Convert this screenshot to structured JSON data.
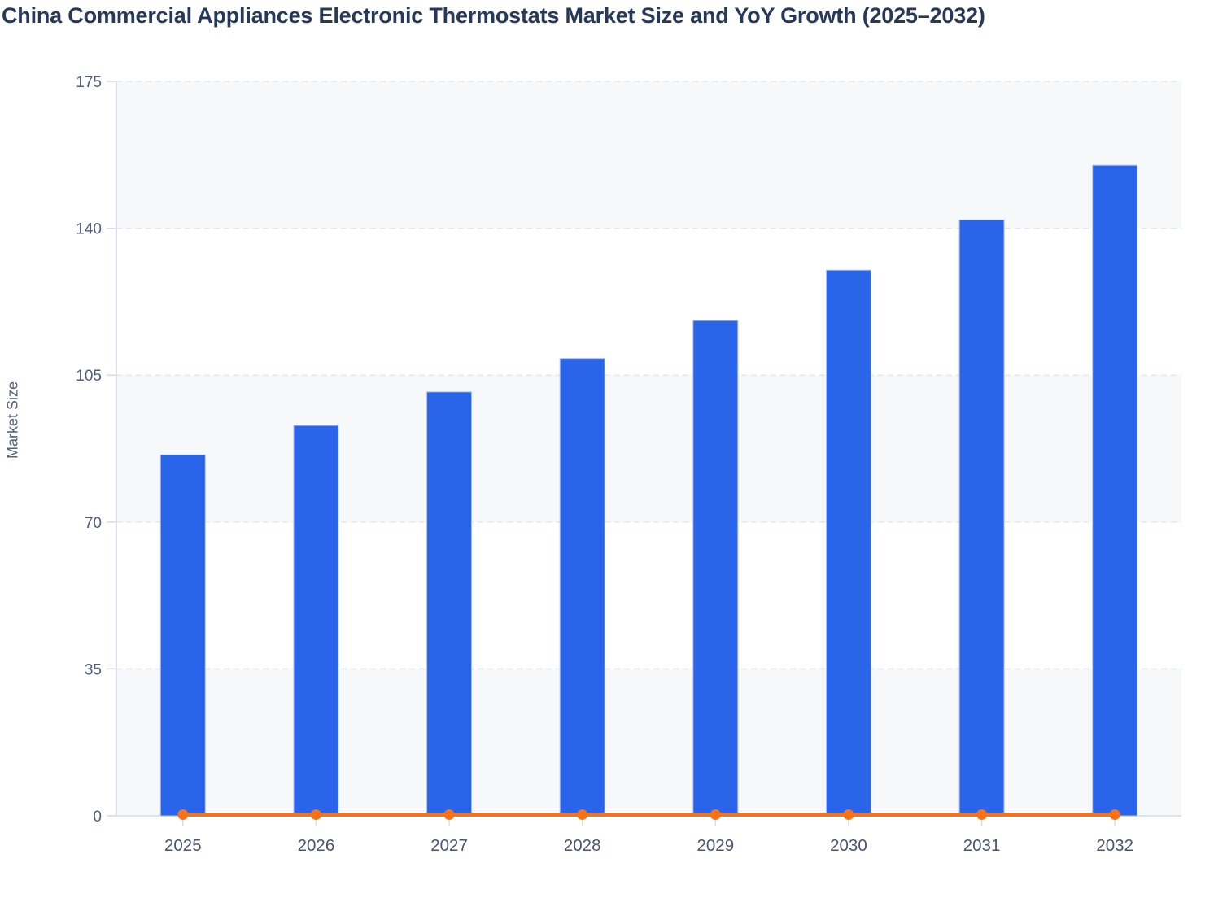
{
  "title": "China Commercial Appliances Electronic Thermostats Market Size and YoY Growth (2025–2032)",
  "colors": {
    "background": "#ffffff",
    "title_text": "#27395a",
    "tick_text": "#515d78",
    "x_tick_text": "#4a5670",
    "axis": "#d7dce7",
    "gridline": "#e4e7ed",
    "band": "#f6f8fa",
    "bar": "#2a64ea",
    "bar_border": "#aec5f2",
    "line": "#f97316"
  },
  "chart_data": {
    "type": "bar",
    "title": "China Commercial Appliances Electronic Thermostats Market Size and YoY Growth (2025–2032)",
    "categories": [
      "2025",
      "2026",
      "2027",
      "2028",
      "2029",
      "2030",
      "2031",
      "2032"
    ],
    "series": [
      {
        "name": "Market Size",
        "type": "bar",
        "values": [
          86,
          93,
          101,
          109,
          118,
          130,
          142,
          155
        ],
        "color": "#2a64ea"
      },
      {
        "name": "YoY Growth",
        "type": "line",
        "values": [
          0,
          0,
          0,
          0,
          0,
          0,
          0,
          0
        ],
        "color": "#f97316"
      }
    ],
    "xlabel": "",
    "ylabel": "Market Size",
    "ylim": [
      0,
      175
    ],
    "yticks": [
      0,
      35,
      70,
      105,
      140,
      175
    ],
    "grid": "horizontal-dashed",
    "plot_bands": "alternating horizontal stripes between ticks (0-35, 70-105, 140-175)",
    "legend_position": "none"
  }
}
